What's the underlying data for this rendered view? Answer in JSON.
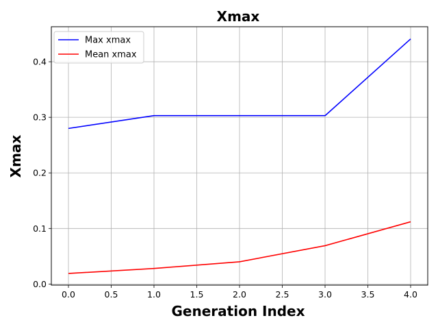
{
  "chart_data": {
    "type": "line",
    "title": "Xmax",
    "xlabel": "Generation Index",
    "ylabel": "Xmax",
    "x": [
      0,
      1,
      2,
      3,
      4
    ],
    "xlim": [
      -0.2,
      4.2
    ],
    "ylim": [
      -0.002,
      0.463
    ],
    "xticks": [
      0.0,
      0.5,
      1.0,
      1.5,
      2.0,
      2.5,
      3.0,
      3.5,
      4.0
    ],
    "xtick_labels": [
      "0.0",
      "0.5",
      "1.0",
      "1.5",
      "2.0",
      "2.5",
      "3.0",
      "3.5",
      "4.0"
    ],
    "yticks": [
      0.0,
      0.1,
      0.2,
      0.3,
      0.4
    ],
    "ytick_labels": [
      "0.0",
      "0.1",
      "0.2",
      "0.3",
      "0.4"
    ],
    "grid": true,
    "legend_position": "upper-left",
    "series": [
      {
        "name": "Max xmax",
        "color": "#0000ff",
        "values": [
          0.28,
          0.303,
          0.303,
          0.303,
          0.441
        ]
      },
      {
        "name": "Mean xmax",
        "color": "#ff0000",
        "values": [
          0.019,
          0.028,
          0.04,
          0.069,
          0.112
        ]
      }
    ]
  }
}
